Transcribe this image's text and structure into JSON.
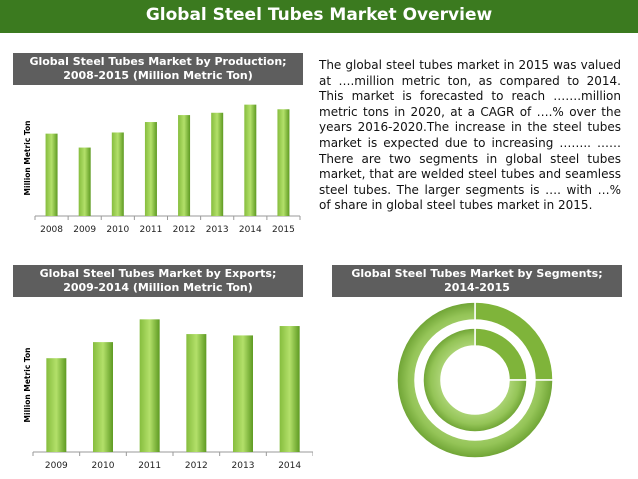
{
  "title": "Global Steel Tubes Market Overview",
  "colors": {
    "banner": "#3b7a1f",
    "panel_header": "#5e5e5e",
    "bar_light": "#a6d356",
    "bar_dark": "#56901f"
  },
  "production_panel": {
    "header_line1": "Global Steel Tubes Market by Production;",
    "header_line2": "2008-2015 (Million Metric Ton)"
  },
  "exports_panel": {
    "header_line1": "Global Steel Tubes Market by Exports;",
    "header_line2": "2009-2014 (Million Metric Ton)"
  },
  "segments_panel": {
    "header_line1": "Global Steel Tubes Market by Segments;",
    "header_line2": "2014-2015"
  },
  "description": "The global steel tubes market in 2015 was valued at ….million metric ton, as compared to 2014. This market is forecasted to reach …….million metric tons in 2020, at a CAGR of ….% over the years 2016-2020.The increase in the steel tubes market is expected due to increasing …….. ……There are two segments in global steel tubes market, that are welded steel tubes and seamless steel tubes. The larger segments is …. with …% of share in global steel tubes market in 2015.",
  "chart_data": [
    {
      "type": "bar",
      "ylabel": "Million Metric Ton",
      "categories": [
        "2008",
        "2009",
        "2010",
        "2011",
        "2012",
        "2013",
        "2014",
        "2015"
      ],
      "values": [
        71,
        59,
        72,
        81,
        87,
        89,
        96,
        92
      ],
      "ylim": [
        0,
        100
      ],
      "grid": false
    },
    {
      "type": "bar",
      "ylabel": "Million Metric Ton",
      "categories": [
        "2009",
        "2010",
        "2011",
        "2012",
        "2013",
        "2014"
      ],
      "values": [
        70,
        82,
        99,
        88,
        87,
        94
      ],
      "ylim": [
        0,
        100
      ],
      "grid": false
    },
    {
      "type": "pie",
      "style": "double-ring",
      "rings": [
        {
          "values": [
            25,
            75
          ]
        },
        {
          "values": [
            25,
            75
          ]
        }
      ]
    }
  ]
}
